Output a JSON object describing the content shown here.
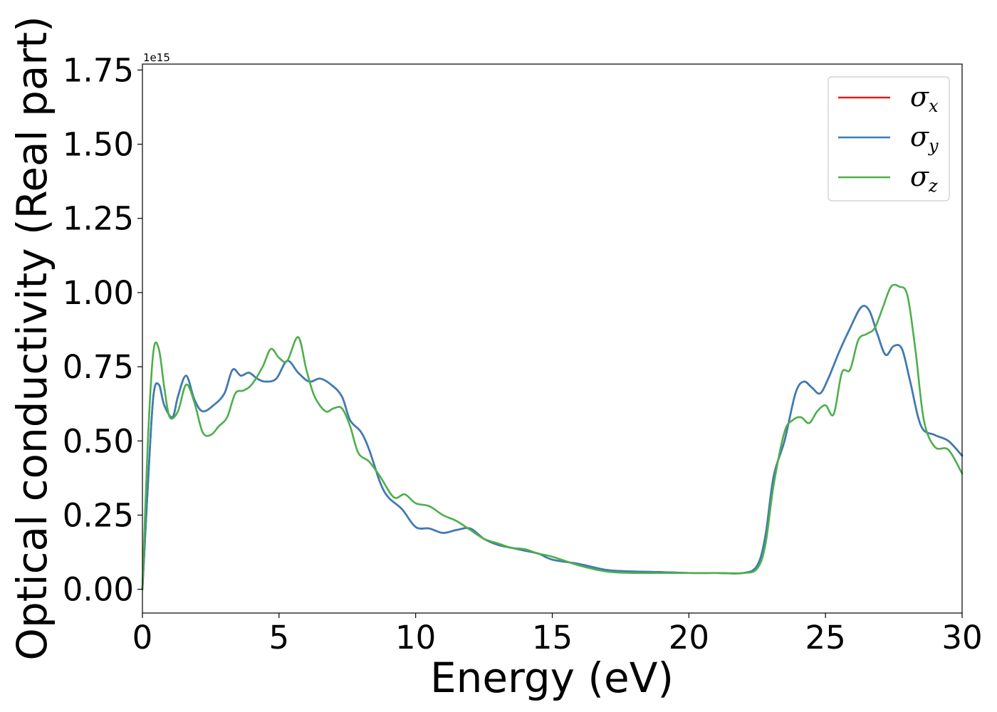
{
  "chart_data": {
    "type": "line",
    "xlabel": "Energy (eV)",
    "ylabel": "Optical conductivity (Real part)",
    "y_offset_text": "1e15",
    "xlim": [
      0,
      30
    ],
    "ylim": [
      -0.08,
      1.77
    ],
    "x_ticks": [
      0,
      5,
      10,
      15,
      20,
      25,
      30
    ],
    "x_tick_labels": [
      "0",
      "5",
      "10",
      "15",
      "20",
      "25",
      "30"
    ],
    "y_ticks": [
      0.0,
      0.25,
      0.5,
      0.75,
      1.0,
      1.25,
      1.5,
      1.75
    ],
    "y_tick_labels": [
      "0.00",
      "0.25",
      "0.50",
      "0.75",
      "1.00",
      "1.25",
      "1.50",
      "1.75"
    ],
    "grid": false,
    "legend_position": "top-right",
    "series": [
      {
        "name": "σx",
        "symbol": "σ",
        "subscript": "x",
        "color": "#e41a1c",
        "x": [
          0,
          0.2,
          0.4,
          0.6,
          0.8,
          1.1,
          1.3,
          1.6,
          1.9,
          2.2,
          2.6,
          3.0,
          3.3,
          3.6,
          3.9,
          4.2,
          4.5,
          4.9,
          5.3,
          5.7,
          6.1,
          6.5,
          6.9,
          7.3,
          7.6,
          8.0,
          8.3,
          8.7,
          9.0,
          9.5,
          10.0,
          10.5,
          11.0,
          11.5,
          12.0,
          12.5,
          13.0,
          13.5,
          14.0,
          14.5,
          15.0,
          16.0,
          17.0,
          18.0,
          19.0,
          20.0,
          21.0,
          22.0,
          22.5,
          22.8,
          23.1,
          23.5,
          23.9,
          24.2,
          24.5,
          24.8,
          25.1,
          25.5,
          25.9,
          26.3,
          26.6,
          26.9,
          27.2,
          27.5,
          27.8,
          28.1,
          28.5,
          29.0,
          29.5,
          30.0
        ],
        "y": [
          0,
          0.35,
          0.65,
          0.69,
          0.62,
          0.58,
          0.65,
          0.72,
          0.64,
          0.6,
          0.62,
          0.66,
          0.74,
          0.72,
          0.73,
          0.71,
          0.7,
          0.71,
          0.77,
          0.73,
          0.7,
          0.71,
          0.69,
          0.65,
          0.57,
          0.53,
          0.47,
          0.36,
          0.31,
          0.27,
          0.21,
          0.205,
          0.19,
          0.2,
          0.205,
          0.17,
          0.15,
          0.14,
          0.13,
          0.12,
          0.1,
          0.085,
          0.065,
          0.06,
          0.058,
          0.055,
          0.055,
          0.055,
          0.08,
          0.18,
          0.38,
          0.5,
          0.66,
          0.7,
          0.68,
          0.66,
          0.71,
          0.8,
          0.88,
          0.95,
          0.94,
          0.86,
          0.79,
          0.82,
          0.81,
          0.7,
          0.55,
          0.52,
          0.5,
          0.45
        ]
      },
      {
        "name": "σy",
        "symbol": "σ",
        "subscript": "y",
        "color": "#377eb8",
        "x": [
          0,
          0.2,
          0.4,
          0.6,
          0.8,
          1.1,
          1.3,
          1.6,
          1.9,
          2.2,
          2.6,
          3.0,
          3.3,
          3.6,
          3.9,
          4.2,
          4.5,
          4.9,
          5.3,
          5.7,
          6.1,
          6.5,
          6.9,
          7.3,
          7.6,
          8.0,
          8.3,
          8.7,
          9.0,
          9.5,
          10.0,
          10.5,
          11.0,
          11.5,
          12.0,
          12.5,
          13.0,
          13.5,
          14.0,
          14.5,
          15.0,
          16.0,
          17.0,
          18.0,
          19.0,
          20.0,
          21.0,
          22.0,
          22.5,
          22.8,
          23.1,
          23.5,
          23.9,
          24.2,
          24.5,
          24.8,
          25.1,
          25.5,
          25.9,
          26.3,
          26.6,
          26.9,
          27.2,
          27.5,
          27.8,
          28.1,
          28.5,
          29.0,
          29.5,
          30.0
        ],
        "y": [
          0,
          0.35,
          0.65,
          0.69,
          0.62,
          0.58,
          0.65,
          0.72,
          0.64,
          0.6,
          0.62,
          0.66,
          0.74,
          0.72,
          0.73,
          0.71,
          0.7,
          0.71,
          0.77,
          0.73,
          0.7,
          0.71,
          0.69,
          0.65,
          0.57,
          0.53,
          0.47,
          0.36,
          0.31,
          0.27,
          0.21,
          0.205,
          0.19,
          0.2,
          0.205,
          0.17,
          0.15,
          0.14,
          0.13,
          0.12,
          0.1,
          0.085,
          0.065,
          0.06,
          0.058,
          0.055,
          0.055,
          0.055,
          0.08,
          0.18,
          0.38,
          0.5,
          0.66,
          0.7,
          0.68,
          0.66,
          0.71,
          0.8,
          0.88,
          0.95,
          0.94,
          0.86,
          0.79,
          0.82,
          0.81,
          0.7,
          0.55,
          0.52,
          0.5,
          0.45
        ]
      },
      {
        "name": "σz",
        "symbol": "σ",
        "subscript": "z",
        "color": "#4daf4a",
        "x": [
          0,
          0.2,
          0.4,
          0.6,
          0.8,
          1.0,
          1.3,
          1.6,
          1.9,
          2.2,
          2.5,
          2.8,
          3.1,
          3.4,
          3.7,
          4.0,
          4.4,
          4.7,
          5.0,
          5.3,
          5.7,
          6.0,
          6.3,
          6.7,
          7.0,
          7.3,
          7.6,
          7.9,
          8.3,
          8.7,
          9.2,
          9.6,
          10.0,
          10.5,
          11.0,
          11.5,
          12.0,
          12.5,
          13.0,
          13.5,
          14.0,
          14.5,
          15.0,
          16.0,
          17.0,
          18.0,
          19.0,
          20.0,
          21.0,
          22.0,
          22.5,
          22.8,
          23.1,
          23.5,
          23.8,
          24.1,
          24.4,
          24.7,
          25.0,
          25.3,
          25.6,
          25.9,
          26.2,
          26.5,
          26.8,
          27.1,
          27.4,
          27.7,
          28.0,
          28.3,
          28.6,
          29.0,
          29.5,
          30.0
        ],
        "y": [
          0,
          0.5,
          0.8,
          0.81,
          0.68,
          0.58,
          0.6,
          0.69,
          0.63,
          0.53,
          0.52,
          0.55,
          0.58,
          0.66,
          0.67,
          0.69,
          0.75,
          0.81,
          0.78,
          0.77,
          0.85,
          0.74,
          0.65,
          0.6,
          0.61,
          0.61,
          0.55,
          0.46,
          0.43,
          0.38,
          0.31,
          0.32,
          0.29,
          0.28,
          0.25,
          0.23,
          0.2,
          0.17,
          0.155,
          0.14,
          0.135,
          0.12,
          0.11,
          0.08,
          0.06,
          0.055,
          0.055,
          0.055,
          0.055,
          0.055,
          0.07,
          0.15,
          0.35,
          0.53,
          0.57,
          0.58,
          0.56,
          0.6,
          0.62,
          0.59,
          0.73,
          0.74,
          0.84,
          0.86,
          0.88,
          0.95,
          1.02,
          1.02,
          0.99,
          0.8,
          0.57,
          0.48,
          0.47,
          0.39
        ]
      }
    ]
  }
}
